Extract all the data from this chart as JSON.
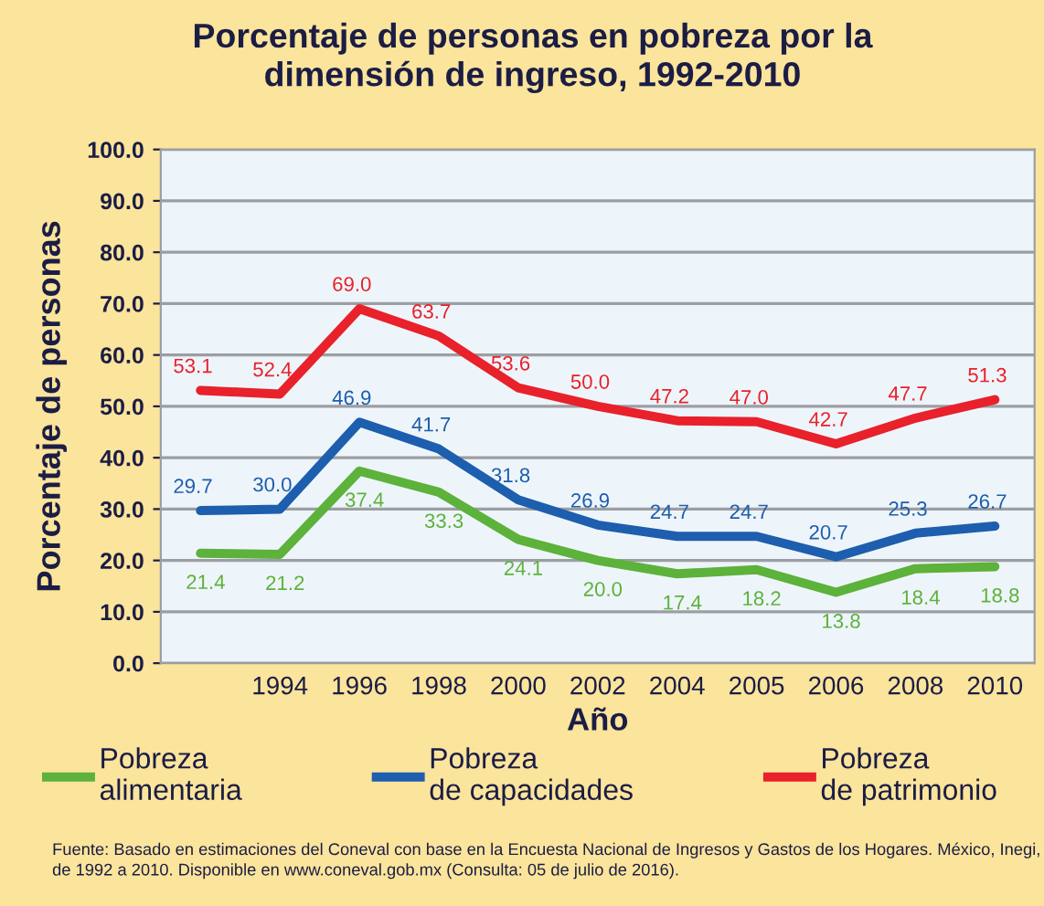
{
  "chart_data": {
    "type": "line",
    "title": "Porcentaje de personas en pobreza por la dimensión de ingreso, 1992-2010",
    "xlabel": "Año",
    "ylabel": "Porcentaje de personas",
    "categories": [
      null,
      "1994",
      "1996",
      "1998",
      "2000",
      "2002",
      "2004",
      "2005",
      "2006",
      "2008",
      "2010"
    ],
    "series": [
      {
        "name": "Pobreza alimentaria",
        "color": "#5cb23a",
        "values": [
          21.4,
          21.2,
          37.4,
          33.3,
          24.1,
          20.0,
          17.4,
          18.2,
          13.8,
          18.4,
          18.8
        ],
        "value_labels": [
          "21.4",
          "21.2",
          "37.4",
          "33.3",
          "24.1",
          "20.0",
          "17.4",
          "18.2",
          "13.8",
          "18.4",
          "18.8"
        ]
      },
      {
        "name": "Pobreza de capacidades",
        "color": "#1d5eae",
        "values": [
          29.7,
          30.0,
          46.9,
          41.7,
          31.8,
          26.9,
          24.7,
          24.7,
          20.7,
          25.3,
          26.7
        ],
        "value_labels": [
          "29.7",
          "30.0",
          "46.9",
          "41.7",
          "31.8",
          "26.9",
          "24.7",
          "24.7",
          "20.7",
          "25.3",
          "26.7"
        ]
      },
      {
        "name": "Pobreza de patrimonio",
        "color": "#e8212b",
        "values": [
          53.1,
          52.4,
          69.0,
          63.7,
          53.6,
          50.0,
          47.2,
          47.0,
          42.7,
          47.7,
          51.3
        ],
        "value_labels": [
          "53.1",
          "52.4",
          "69.0",
          "63.7",
          "53.6",
          "50.0",
          "47.2",
          "47.0",
          "42.7",
          "47.7",
          "51.3"
        ]
      }
    ],
    "ylim": [
      0,
      100
    ],
    "yticks": [
      {
        "value": 0,
        "label": "0.0"
      },
      {
        "value": 10,
        "label": "10.0"
      },
      {
        "value": 20,
        "label": "20.0"
      },
      {
        "value": 30,
        "label": "30.0"
      },
      {
        "value": 40,
        "label": "40.0"
      },
      {
        "value": 50,
        "label": "50.0"
      },
      {
        "value": 60,
        "label": "60.0"
      },
      {
        "value": 70,
        "label": "70.0"
      },
      {
        "value": 80,
        "label": "80.0"
      },
      {
        "value": 90,
        "label": "90.0"
      },
      {
        "value": 100,
        "label": "100.0"
      }
    ],
    "grid": "y",
    "legend": "bottom",
    "marker": "none",
    "line_style": "solid",
    "annotations": [
      "Fuente: Basado en estimaciones del Coneval con base en la Encuesta Nacional de Ingresos y Gastos de los Hogares. México, Inegi, de 1992 a 2010. Disponible en www.coneval.gob.mx (Consulta: 05 de julio de 2016)."
    ]
  }
}
